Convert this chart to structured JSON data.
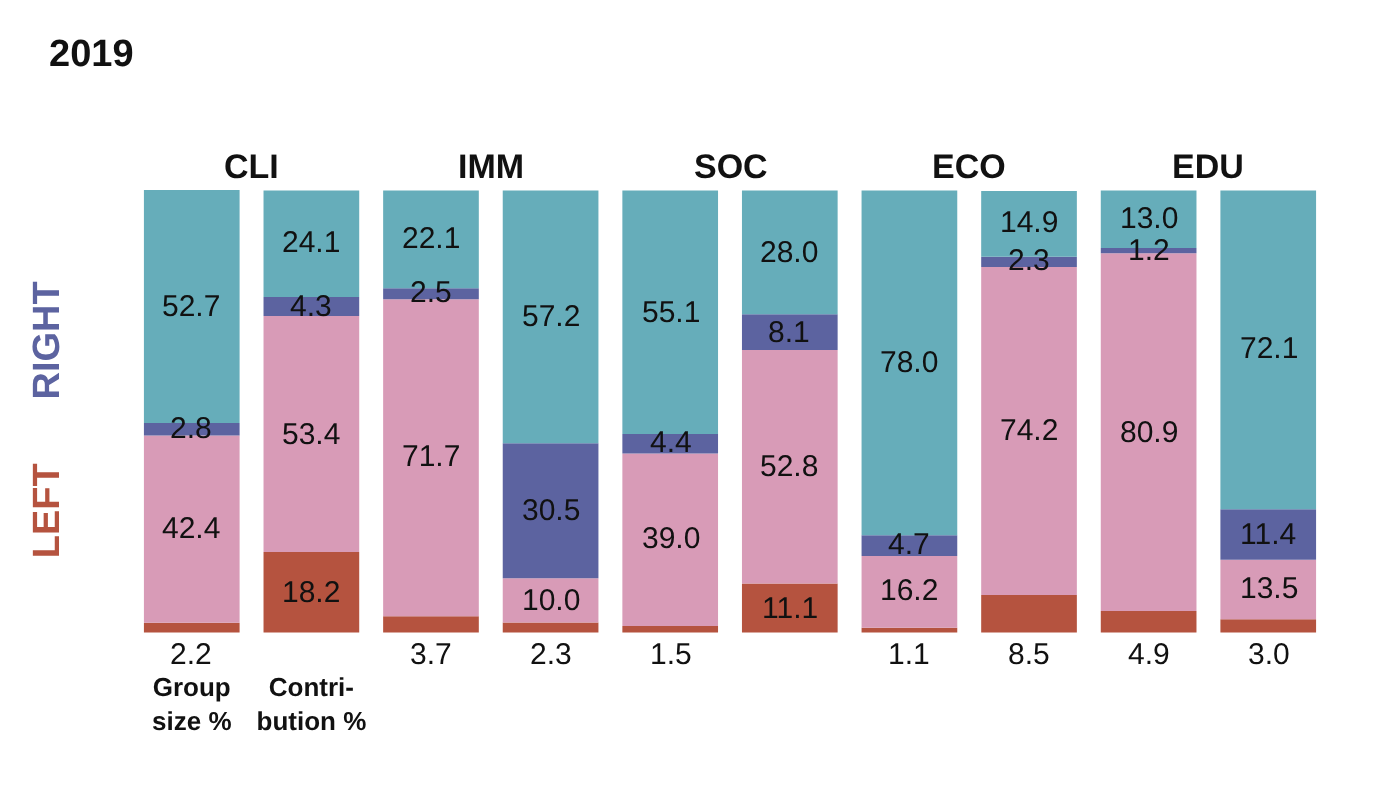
{
  "chart_data": {
    "type": "bar",
    "title": "2019",
    "stacked": true,
    "categories": [
      "Group size %",
      "Contri-bution %",
      null,
      null,
      null,
      null,
      null,
      null,
      null,
      null
    ],
    "series": [
      {
        "color": "#b5533f",
        "values": [
          2.2,
          18.2,
          3.7,
          2.3,
          1.5,
          11.1,
          1.1,
          8.5,
          4.9,
          3.0
        ],
        "value_labels": [
          "2.2",
          "18.2",
          "3.7",
          "2.3",
          "1.5",
          "11.1",
          "1.1",
          "8.5",
          "4.9",
          "3.0"
        ]
      },
      {
        "color": "#d89bb7",
        "values": [
          42.4,
          53.4,
          71.7,
          10.0,
          39.0,
          52.8,
          16.2,
          74.2,
          80.9,
          13.5
        ],
        "value_labels": [
          "42.4",
          "53.4",
          "71.7",
          "10.0",
          "39.0",
          "52.8",
          "16.2",
          "74.2",
          "80.9",
          "13.5"
        ]
      },
      {
        "color": "#5c63a0",
        "values": [
          2.8,
          4.3,
          2.5,
          30.5,
          4.4,
          8.1,
          4.7,
          2.3,
          1.2,
          11.4
        ],
        "value_labels": [
          "2.8",
          "4.3",
          "2.5",
          "30.5",
          "4.4",
          "8.1",
          "4.7",
          "2.3",
          "1.2",
          "11.4"
        ]
      },
      {
        "color": "#66adba",
        "values": [
          52.7,
          24.1,
          22.1,
          57.2,
          55.1,
          28.0,
          78.0,
          14.9,
          13.0,
          72.1
        ],
        "value_labels": [
          "52.7",
          "24.1",
          "22.1",
          "57.2",
          "55.1",
          "28.0",
          "78.0",
          "14.9",
          "13.0",
          "72.1"
        ]
      }
    ],
    "annotations": [
      "CLI",
      "IMM",
      "SOC",
      "ECO",
      "EDU",
      "RIGHT",
      "LEFT"
    ]
  }
}
